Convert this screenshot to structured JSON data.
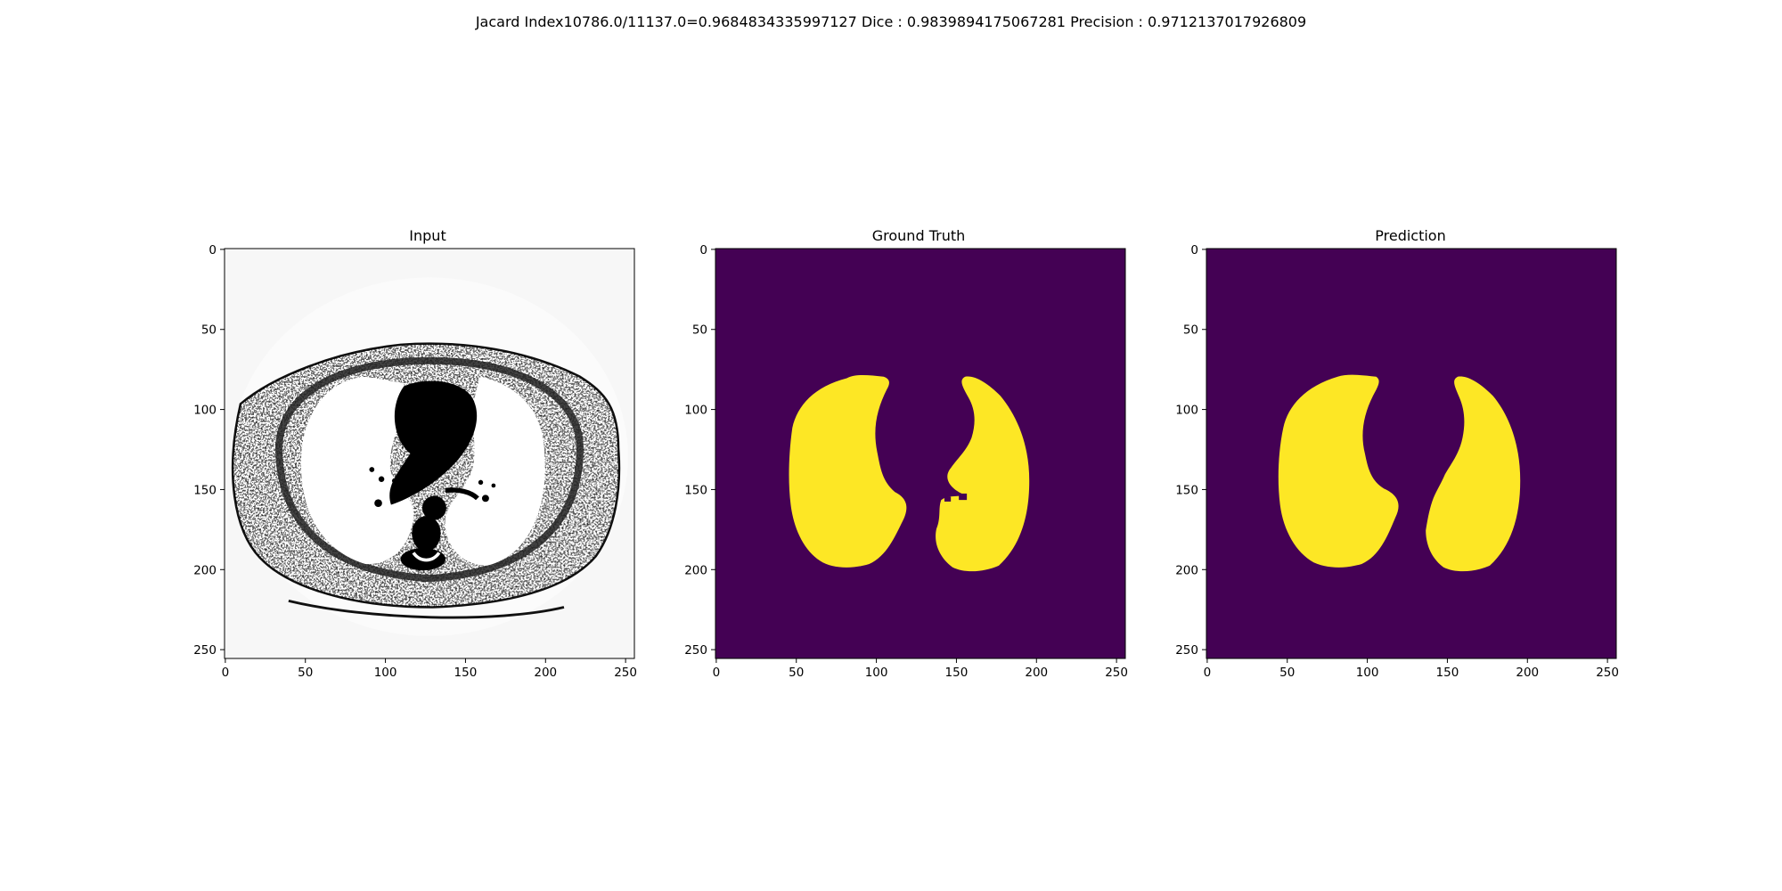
{
  "suptitle": "Jacard Index10786.0/11137.0=0.9684834335997127 Dice : 0.9839894175067281 Precision : 0.9712137017926809",
  "image_size": [
    256,
    256
  ],
  "panels": [
    {
      "key": "input",
      "title": "Input"
    },
    {
      "key": "ground_truth",
      "title": "Ground Truth"
    },
    {
      "key": "prediction",
      "title": "Prediction"
    }
  ],
  "axes": {
    "xticks": [
      "0",
      "50",
      "100",
      "150",
      "200",
      "250"
    ],
    "yticks": [
      "0",
      "50",
      "100",
      "150",
      "200",
      "250"
    ],
    "tick_values": [
      0,
      50,
      100,
      150,
      200,
      250
    ]
  },
  "colors": {
    "mask_background": "#440154",
    "mask_foreground": "#fde725",
    "ct_background": "#f7f7f7",
    "ct_dark": "#000000",
    "ct_light": "#ffffff"
  }
}
